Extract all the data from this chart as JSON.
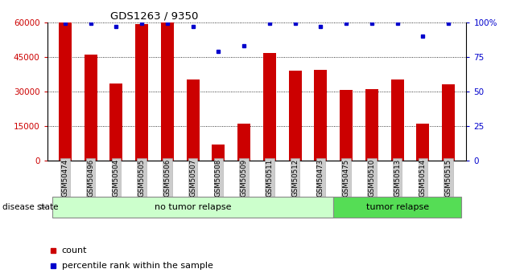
{
  "title": "GDS1263 / 9350",
  "samples": [
    "GSM50474",
    "GSM50496",
    "GSM50504",
    "GSM50505",
    "GSM50506",
    "GSM50507",
    "GSM50508",
    "GSM50509",
    "GSM50511",
    "GSM50512",
    "GSM50473",
    "GSM50475",
    "GSM50510",
    "GSM50513",
    "GSM50514",
    "GSM50515"
  ],
  "counts": [
    60000,
    46000,
    33500,
    59000,
    60000,
    35000,
    7000,
    16000,
    46500,
    39000,
    39500,
    30500,
    31000,
    35000,
    16000,
    33000
  ],
  "percentiles": [
    99,
    99,
    97,
    99,
    99,
    97,
    79,
    83,
    99,
    99,
    97,
    99,
    99,
    99,
    90,
    99
  ],
  "bar_color": "#cc0000",
  "dot_color": "#0000cc",
  "ylim_left": [
    0,
    60000
  ],
  "ylim_right": [
    0,
    100
  ],
  "yticks_left": [
    0,
    15000,
    30000,
    45000,
    60000
  ],
  "yticks_right": [
    0,
    25,
    50,
    75,
    100
  ],
  "yticklabels_right": [
    "0",
    "25",
    "50",
    "75",
    "100%"
  ],
  "group1_label": "no tumor relapse",
  "group2_label": "tumor relapse",
  "group1_count": 11,
  "group2_count": 5,
  "disease_state_label": "disease state",
  "legend_count_label": "count",
  "legend_pct_label": "percentile rank within the sample",
  "bar_width": 0.5,
  "left_tick_color": "#cc0000",
  "right_tick_color": "#0000cc",
  "group1_bg": "#ccffcc",
  "group2_bg": "#55dd55",
  "xticklabels_bg": "#cccccc"
}
